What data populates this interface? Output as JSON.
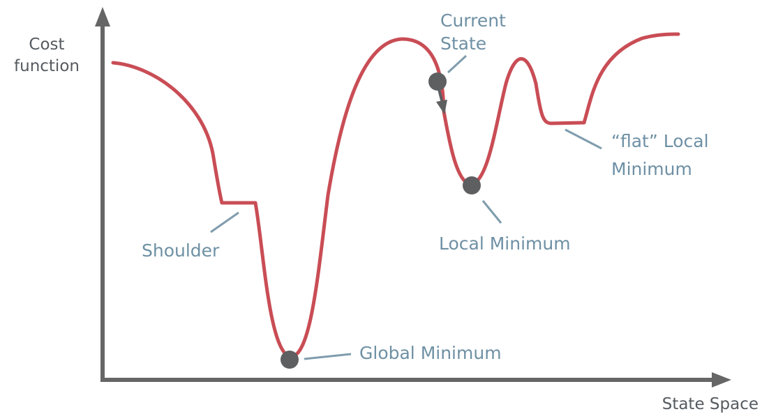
{
  "axes": {
    "y_label_line1": "Cost",
    "y_label_line2": "function",
    "x_label": "State Space"
  },
  "annotations": {
    "current_state_line1": "Current",
    "current_state_line2": "State",
    "shoulder": "Shoulder",
    "global_minimum": "Global Minimum",
    "local_minimum": "Local Minimum",
    "flat_local_minimum_line1": "“flat” Local",
    "flat_local_minimum_line2": "Minimum"
  },
  "colors": {
    "curve": "#c94d55",
    "axes": "#666666",
    "annotation_text": "#6e90a4",
    "axis_text": "#555b60",
    "markers": "#5d5f61"
  }
}
